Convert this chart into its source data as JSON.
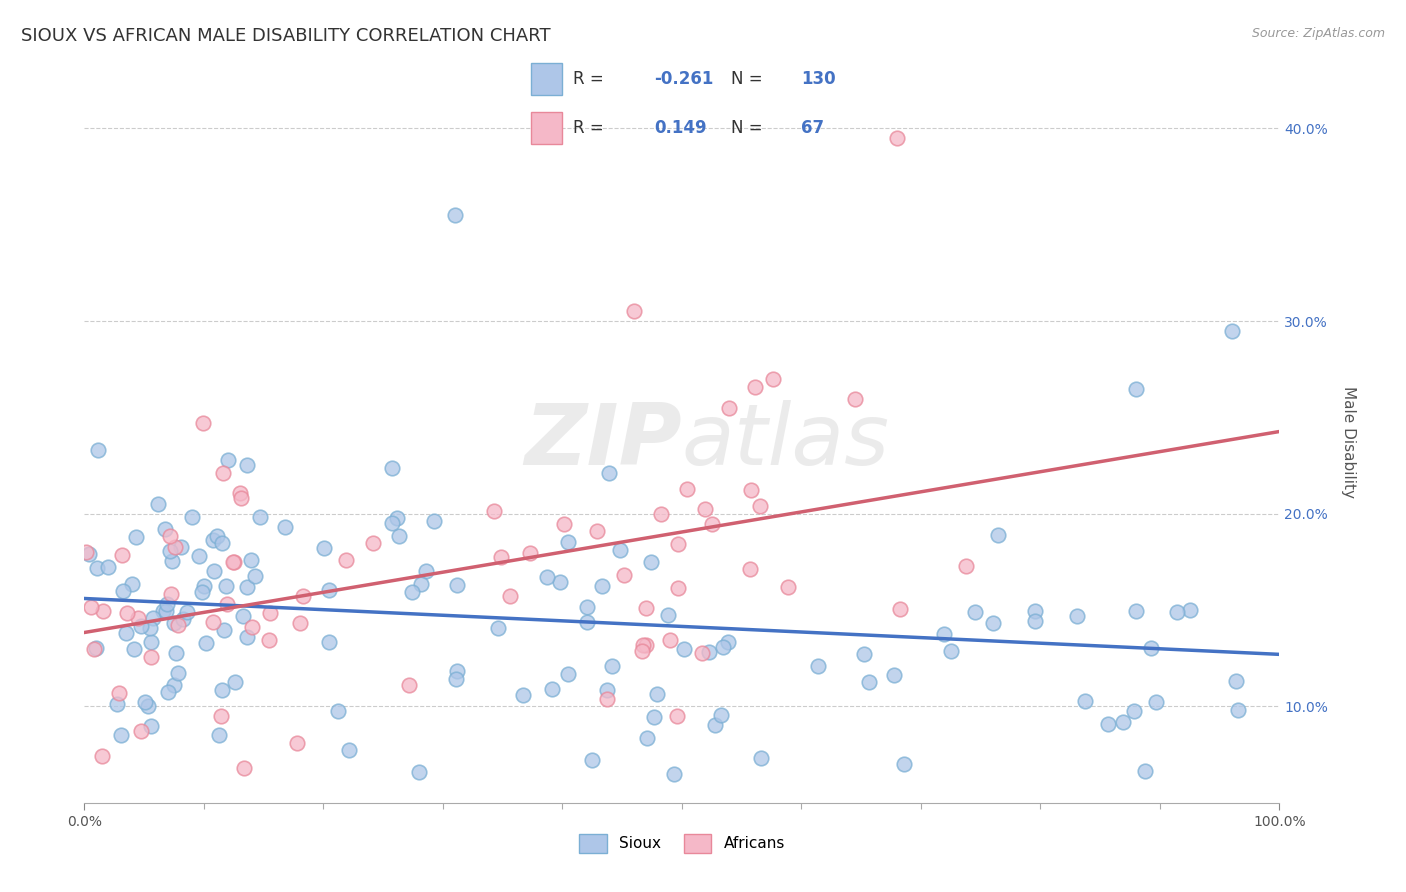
{
  "title": "SIOUX VS AFRICAN MALE DISABILITY CORRELATION CHART",
  "source": "Source: ZipAtlas.com",
  "ylabel": "Male Disability",
  "sioux_R": -0.261,
  "sioux_N": 130,
  "african_R": 0.149,
  "african_N": 67,
  "sioux_color": "#aec6e8",
  "african_color": "#f5b8c8",
  "sioux_edge_color": "#7bafd4",
  "african_edge_color": "#e8889a",
  "sioux_line_color": "#4472c4",
  "african_line_color": "#d06070",
  "xlim": [
    0.0,
    1.0
  ],
  "ylim": [
    0.05,
    0.425
  ],
  "yticks": [
    0.1,
    0.2,
    0.3,
    0.4
  ],
  "background_color": "#ffffff",
  "title_fontsize": 13,
  "axis_label_fontsize": 11,
  "tick_fontsize": 10,
  "legend_fontsize": 12
}
